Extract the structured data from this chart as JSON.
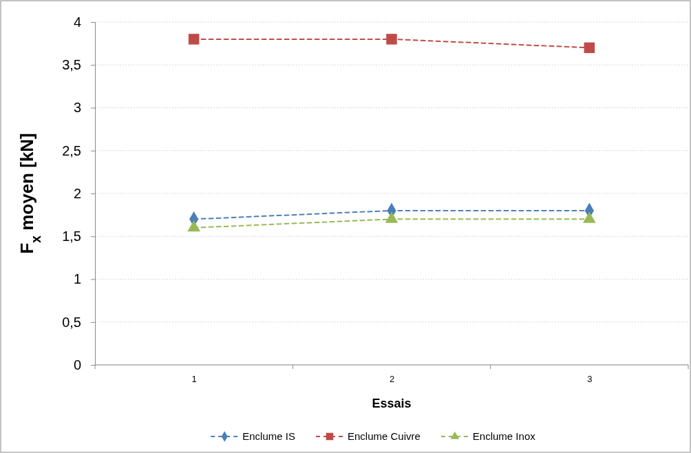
{
  "chart_data": {
    "type": "line",
    "xlabel": "Essais",
    "ylabel": "F$_{x}$ moyen [kN]",
    "categories": [
      "1",
      "2",
      "3"
    ],
    "series": [
      {
        "name": "Enclume IS",
        "color": "#4a7ebb",
        "values": [
          1.7,
          1.8,
          1.8
        ],
        "marker": "diamond"
      },
      {
        "name": "Enclume Cuivre",
        "color": "#be4b48",
        "values": [
          3.8,
          3.8,
          3.7
        ],
        "marker": "square"
      },
      {
        "name": "Enclume Inox",
        "color": "#98b954",
        "values": [
          1.6,
          1.7,
          1.7
        ],
        "marker": "triangle"
      }
    ],
    "ylim": [
      0,
      4
    ],
    "yticks": [
      0,
      {
        "value": 0.5,
        "label": "0,5"
      },
      1,
      {
        "value": 1.5,
        "label": "1,5"
      },
      2,
      {
        "value": 2.5,
        "label": "2,5"
      },
      3,
      {
        "value": 3.5,
        "label": "3,5"
      },
      4
    ],
    "grid": "y",
    "legend": "bottom",
    "line_style": "dashed"
  }
}
